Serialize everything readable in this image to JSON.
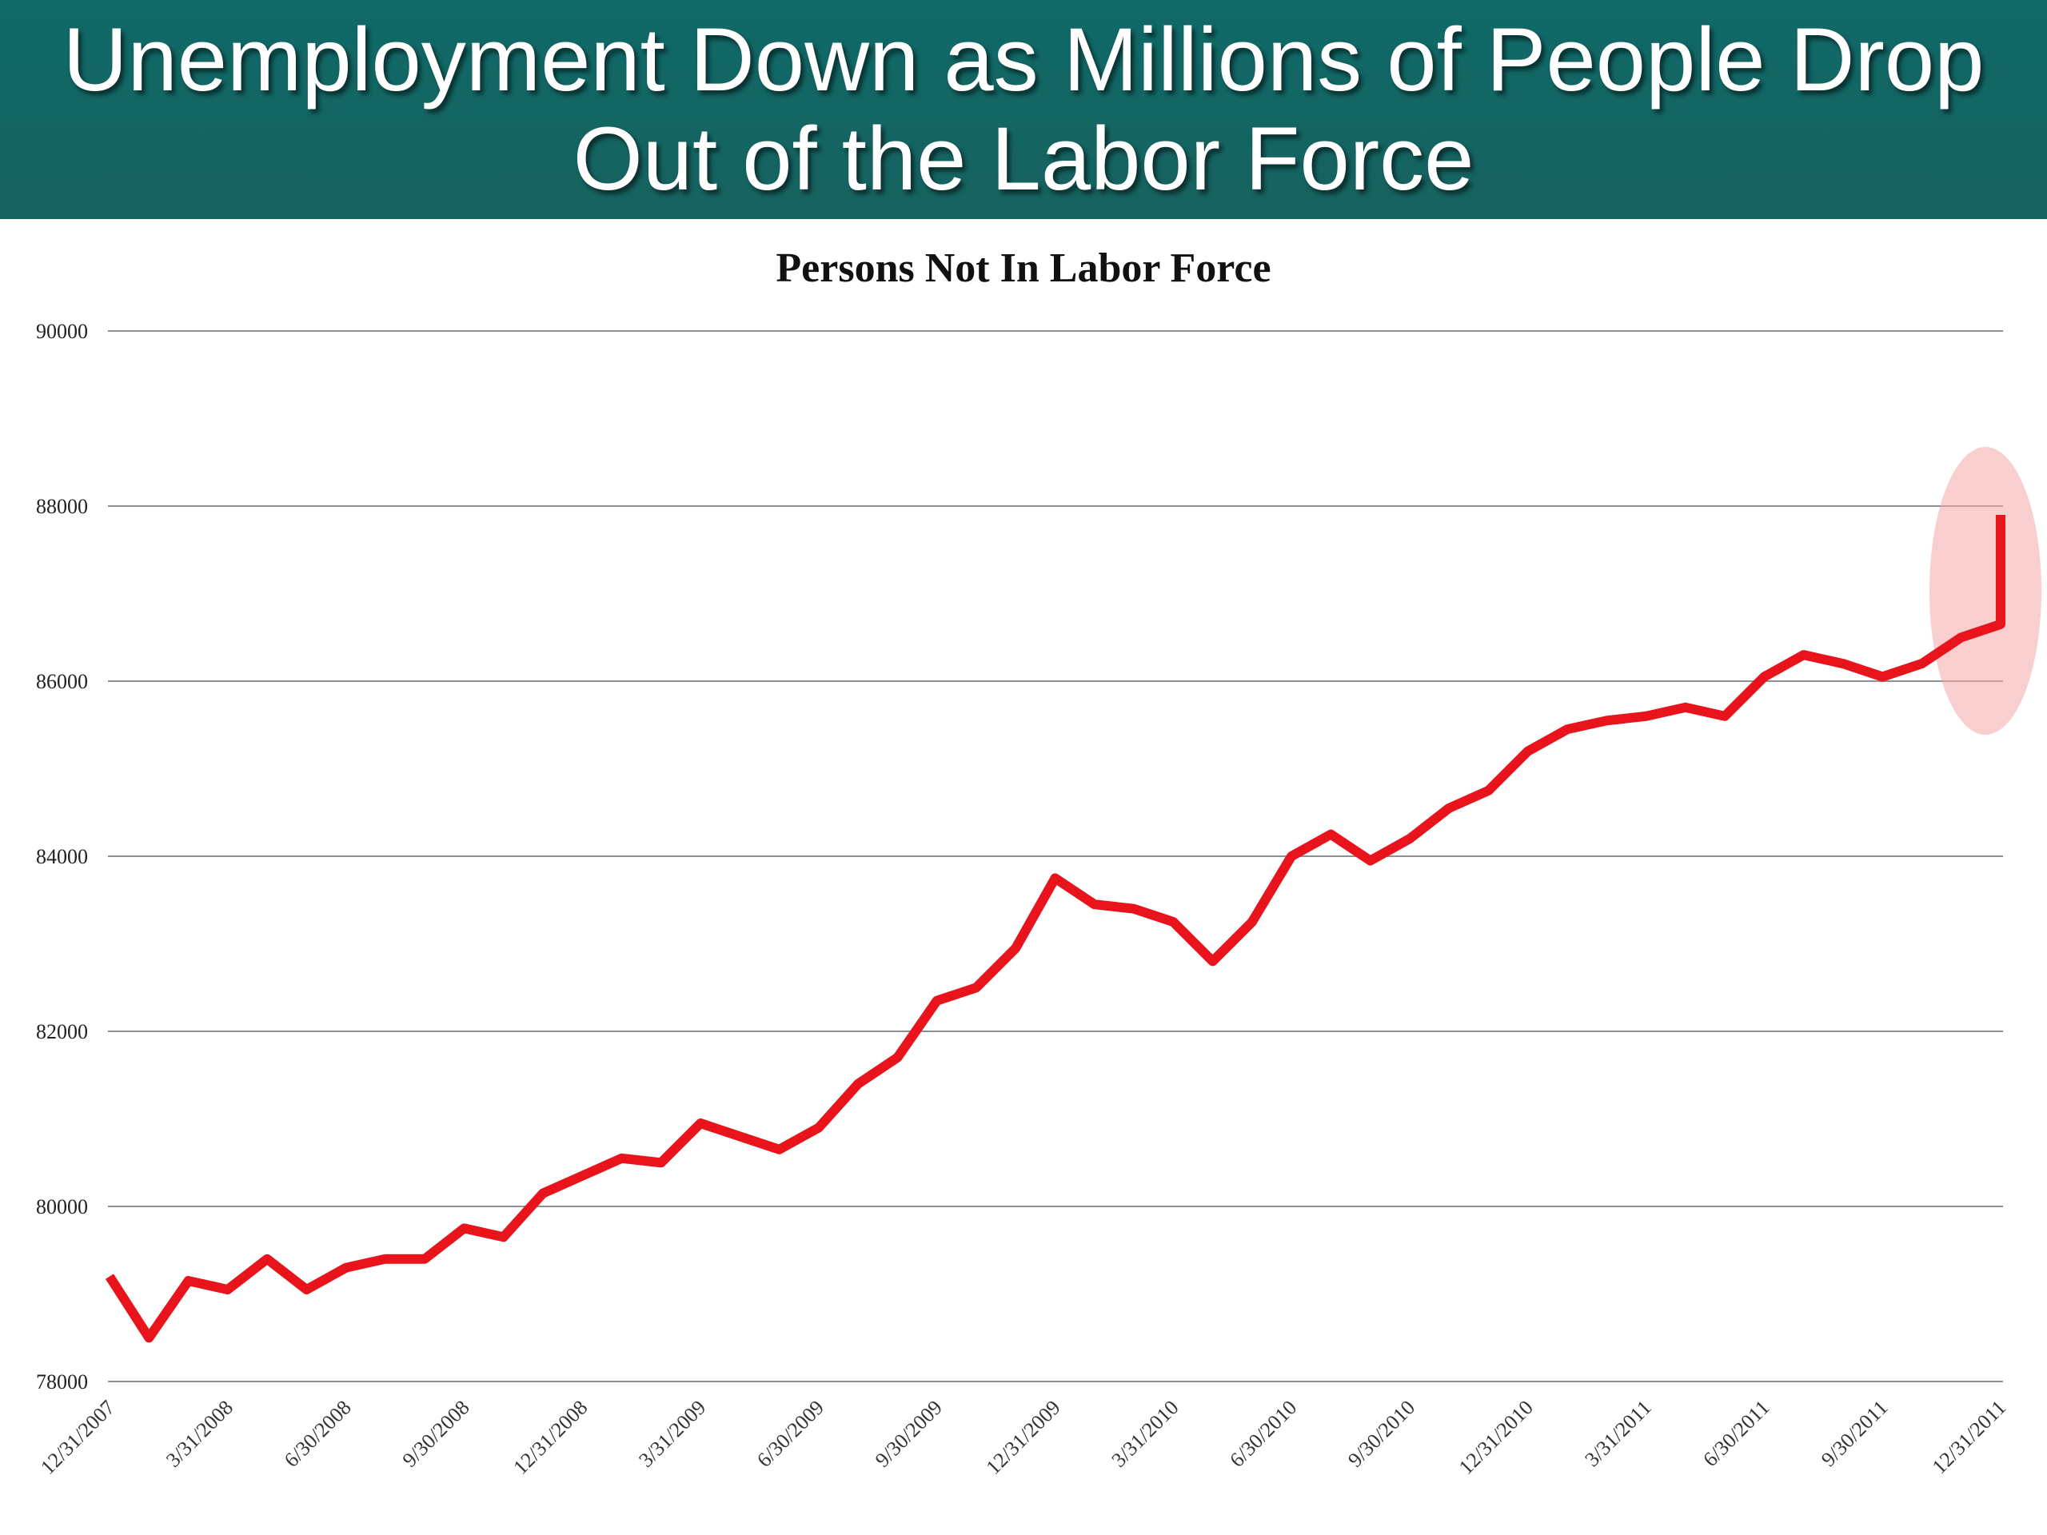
{
  "banner": {
    "title_line1": "Unemployment Down as Millions of People Drop",
    "title_line2": "Out of the Labor Force"
  },
  "colors": {
    "banner": "#126663",
    "line": "#e8131b",
    "highlight": "#f4a5a8",
    "grid": "#8f8f8f"
  },
  "chart_data": {
    "type": "line",
    "title": "Persons Not In Labor Force",
    "xlabel": "",
    "ylabel": "",
    "ylim": [
      78000,
      90000
    ],
    "yticks": [
      78000,
      80000,
      82000,
      84000,
      86000,
      88000,
      90000
    ],
    "ytick_labels": [
      "78000",
      "80000",
      "82000",
      "84000",
      "86000",
      "88000",
      "90000"
    ],
    "xtick_labels": [
      "12/31/2007",
      "3/31/2008",
      "6/30/2008",
      "9/30/2008",
      "12/31/2008",
      "3/31/2009",
      "6/30/2009",
      "9/30/2009",
      "12/31/2009",
      "3/31/2010",
      "6/30/2010",
      "9/30/2010",
      "12/31/2010",
      "3/31/2011",
      "6/30/2011",
      "9/30/2011",
      "12/31/2011"
    ],
    "x": [
      "2007-12",
      "2008-01",
      "2008-02",
      "2008-03",
      "2008-04",
      "2008-05",
      "2008-06",
      "2008-07",
      "2008-08",
      "2008-09",
      "2008-10",
      "2008-11",
      "2008-12",
      "2009-01",
      "2009-02",
      "2009-03",
      "2009-04",
      "2009-05",
      "2009-06",
      "2009-07",
      "2009-08",
      "2009-09",
      "2009-10",
      "2009-11",
      "2009-12",
      "2010-01",
      "2010-02",
      "2010-03",
      "2010-04",
      "2010-05",
      "2010-06",
      "2010-07",
      "2010-08",
      "2010-09",
      "2010-10",
      "2010-11",
      "2010-12",
      "2011-01",
      "2011-02",
      "2011-03",
      "2011-04",
      "2011-05",
      "2011-06",
      "2011-07",
      "2011-08",
      "2011-09",
      "2011-10",
      "2011-11",
      "2011-12",
      "2012-01"
    ],
    "series": [
      {
        "values": [
          79200,
          78500,
          79150,
          79050,
          79400,
          79050,
          79300,
          79400,
          79400,
          79750,
          79650,
          80150,
          80350,
          80550,
          80500,
          80950,
          80800,
          80650,
          80900,
          81400,
          81700,
          82350,
          82500,
          82950,
          83750,
          83450,
          83400,
          83250,
          82800,
          83250,
          84000,
          84250,
          83950,
          84200,
          84550,
          84750,
          85200,
          85450,
          85550,
          85600,
          85700,
          85600,
          86050,
          86300,
          86200,
          86050,
          86200,
          86500,
          86650,
          87900
        ]
      }
    ],
    "annotations": [
      {
        "type": "highlight-ellipse",
        "around": "2011-12 to 2012-01"
      }
    ],
    "grid": true,
    "legend": "none"
  }
}
